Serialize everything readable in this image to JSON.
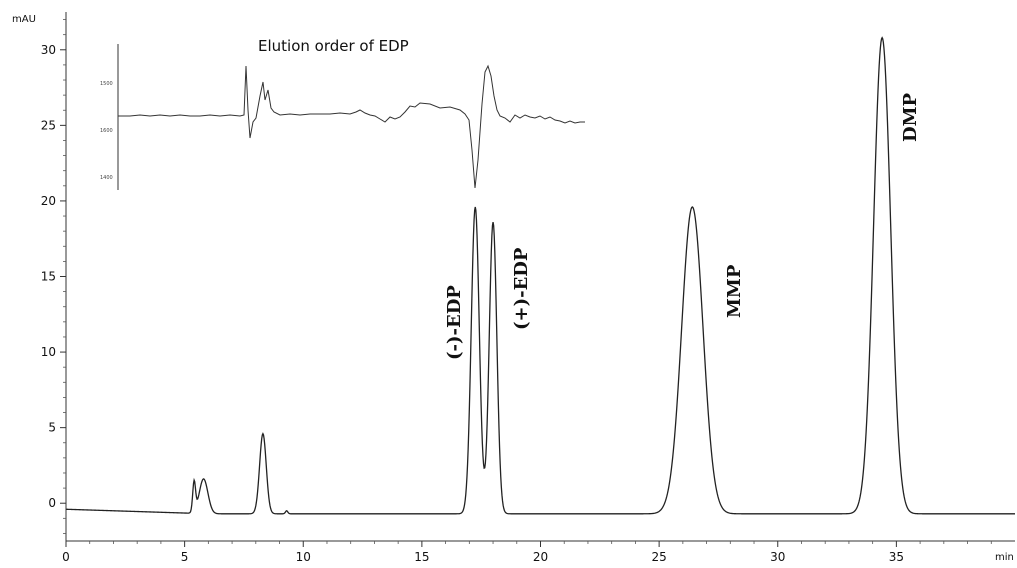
{
  "chart_data": {
    "type": "line",
    "ylabel": "mAU",
    "xlabel": "min",
    "xlim": [
      0,
      40
    ],
    "ylim": [
      -2.5,
      32.5
    ],
    "x_ticks": [
      0,
      5,
      10,
      15,
      20,
      25,
      30,
      35
    ],
    "y_ticks": [
      0,
      5,
      10,
      15,
      20,
      25,
      30
    ],
    "baseline": {
      "start": -0.4,
      "end": -0.7
    },
    "peaks": [
      {
        "time": 5.4,
        "height": 2.0,
        "width": 0.06
      },
      {
        "time": 5.8,
        "height": 2.3,
        "width": 0.18
      },
      {
        "time": 8.3,
        "height": 5.3,
        "width": 0.14
      },
      {
        "time": 9.3,
        "height": 0.2,
        "width": 0.05
      },
      {
        "time": 17.25,
        "height": 20.3,
        "width": 0.17,
        "label": "(-)-EDP"
      },
      {
        "time": 18.0,
        "height": 19.3,
        "width": 0.16,
        "label": "(+)-EDP"
      },
      {
        "time": 26.4,
        "height": 20.3,
        "width": 0.45,
        "label": "MMP"
      },
      {
        "time": 34.4,
        "height": 31.5,
        "width": 0.36,
        "label": "DMP"
      }
    ],
    "inset": {
      "title": "Elution order of EDP",
      "y_ticks": [
        "1500",
        "1600",
        "1400"
      ]
    }
  }
}
